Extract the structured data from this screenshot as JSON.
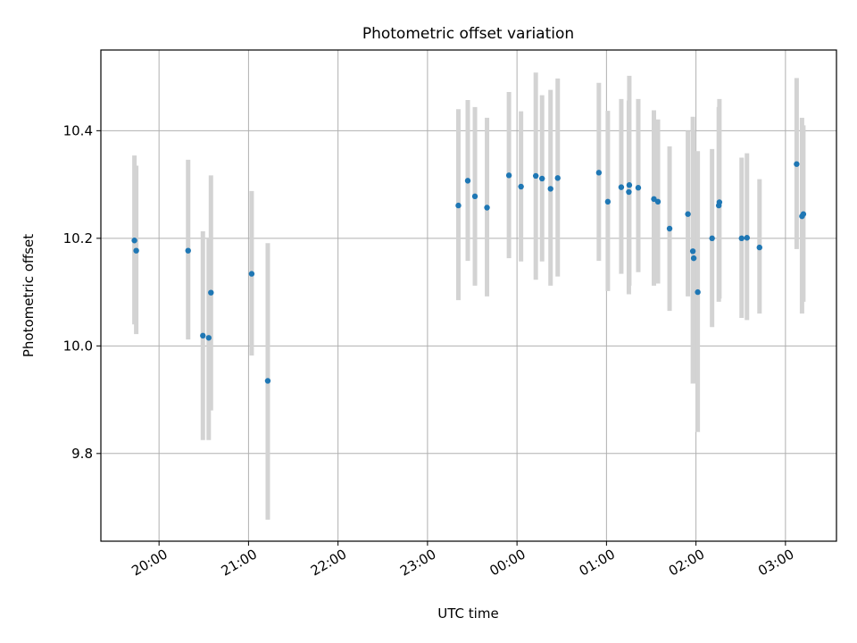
{
  "chart_data": {
    "type": "scatter",
    "title": "Photometric offset variation",
    "xlabel": "UTC time",
    "ylabel": "Photometric offset",
    "x_unit": "hours (UTC, hours after 00:00 on the first night; values above 24 continue past midnight)",
    "xlim": [
      19.35,
      27.57
    ],
    "ylim": [
      9.637,
      10.55
    ],
    "x_ticks": [
      {
        "value": 20,
        "label": "20:00"
      },
      {
        "value": 21,
        "label": "21:00"
      },
      {
        "value": 22,
        "label": "22:00"
      },
      {
        "value": 23,
        "label": "23:00"
      },
      {
        "value": 24,
        "label": "00:00"
      },
      {
        "value": 25,
        "label": "01:00"
      },
      {
        "value": 26,
        "label": "02:00"
      },
      {
        "value": 27,
        "label": "03:00"
      }
    ],
    "y_ticks": [
      {
        "value": 9.8,
        "label": "9.8"
      },
      {
        "value": 10.0,
        "label": "10.0"
      },
      {
        "value": 10.2,
        "label": "10.2"
      },
      {
        "value": 10.4,
        "label": "10.4"
      }
    ],
    "grid": true,
    "point_color": "#1f77b4",
    "errorbar_color": "#d3d3d3",
    "points": [
      {
        "x": 19.725,
        "y": 10.196,
        "ylow": 10.04,
        "yhigh": 10.354
      },
      {
        "x": 19.745,
        "y": 10.177,
        "ylow": 10.022,
        "yhigh": 10.335
      },
      {
        "x": 20.325,
        "y": 10.177,
        "ylow": 10.012,
        "yhigh": 10.346
      },
      {
        "x": 20.49,
        "y": 10.019,
        "ylow": 9.825,
        "yhigh": 10.213
      },
      {
        "x": 20.555,
        "y": 10.015,
        "ylow": 9.825,
        "yhigh": 10.2
      },
      {
        "x": 20.58,
        "y": 10.099,
        "ylow": 9.88,
        "yhigh": 10.317
      },
      {
        "x": 21.035,
        "y": 10.134,
        "ylow": 9.982,
        "yhigh": 10.288
      },
      {
        "x": 21.215,
        "y": 9.935,
        "ylow": 9.677,
        "yhigh": 10.191
      },
      {
        "x": 23.345,
        "y": 10.261,
        "ylow": 10.085,
        "yhigh": 10.44
      },
      {
        "x": 23.45,
        "y": 10.307,
        "ylow": 10.158,
        "yhigh": 10.457
      },
      {
        "x": 23.53,
        "y": 10.278,
        "ylow": 10.112,
        "yhigh": 10.444
      },
      {
        "x": 23.665,
        "y": 10.257,
        "ylow": 10.092,
        "yhigh": 10.424
      },
      {
        "x": 23.91,
        "y": 10.317,
        "ylow": 10.163,
        "yhigh": 10.472
      },
      {
        "x": 24.045,
        "y": 10.296,
        "ylow": 10.157,
        "yhigh": 10.436
      },
      {
        "x": 24.21,
        "y": 10.316,
        "ylow": 10.123,
        "yhigh": 10.508
      },
      {
        "x": 24.28,
        "y": 10.311,
        "ylow": 10.157,
        "yhigh": 10.466
      },
      {
        "x": 24.375,
        "y": 10.292,
        "ylow": 10.112,
        "yhigh": 10.476
      },
      {
        "x": 24.455,
        "y": 10.312,
        "ylow": 10.129,
        "yhigh": 10.497
      },
      {
        "x": 24.915,
        "y": 10.322,
        "ylow": 10.158,
        "yhigh": 10.489
      },
      {
        "x": 25.015,
        "y": 10.268,
        "ylow": 10.102,
        "yhigh": 10.437
      },
      {
        "x": 25.165,
        "y": 10.295,
        "ylow": 10.134,
        "yhigh": 10.459
      },
      {
        "x": 25.25,
        "y": 10.286,
        "ylow": 10.096,
        "yhigh": 10.456
      },
      {
        "x": 25.255,
        "y": 10.299,
        "ylow": 10.112,
        "yhigh": 10.502
      },
      {
        "x": 25.355,
        "y": 10.294,
        "ylow": 10.137,
        "yhigh": 10.459
      },
      {
        "x": 25.53,
        "y": 10.273,
        "ylow": 10.112,
        "yhigh": 10.438
      },
      {
        "x": 25.575,
        "y": 10.268,
        "ylow": 10.116,
        "yhigh": 10.421
      },
      {
        "x": 25.705,
        "y": 10.218,
        "ylow": 10.065,
        "yhigh": 10.371
      },
      {
        "x": 25.91,
        "y": 10.245,
        "ylow": 10.092,
        "yhigh": 10.4
      },
      {
        "x": 25.965,
        "y": 10.176,
        "ylow": 9.93,
        "yhigh": 10.426
      },
      {
        "x": 25.975,
        "y": 10.163,
        "ylow": 9.93,
        "yhigh": 10.4
      },
      {
        "x": 26.02,
        "y": 10.1,
        "ylow": 9.84,
        "yhigh": 10.362
      },
      {
        "x": 26.18,
        "y": 10.2,
        "ylow": 10.035,
        "yhigh": 10.366
      },
      {
        "x": 26.255,
        "y": 10.261,
        "ylow": 10.082,
        "yhigh": 10.444
      },
      {
        "x": 26.262,
        "y": 10.267,
        "ylow": 10.088,
        "yhigh": 10.459
      },
      {
        "x": 26.51,
        "y": 10.2,
        "ylow": 10.052,
        "yhigh": 10.35
      },
      {
        "x": 26.57,
        "y": 10.201,
        "ylow": 10.048,
        "yhigh": 10.358
      },
      {
        "x": 26.71,
        "y": 10.183,
        "ylow": 10.06,
        "yhigh": 10.31
      },
      {
        "x": 27.125,
        "y": 10.338,
        "ylow": 10.18,
        "yhigh": 10.498
      },
      {
        "x": 27.185,
        "y": 10.241,
        "ylow": 10.06,
        "yhigh": 10.424
      },
      {
        "x": 27.2,
        "y": 10.245,
        "ylow": 10.082,
        "yhigh": 10.41
      }
    ]
  }
}
